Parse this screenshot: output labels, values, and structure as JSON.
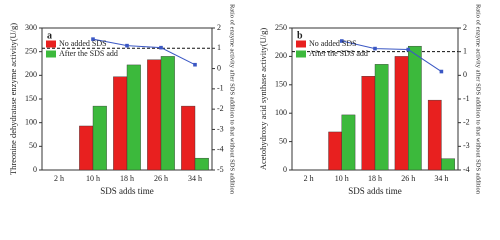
{
  "chart_data": [
    {
      "type": "bar",
      "panel_label": "a",
      "x_label": "SDS adds time",
      "y_label": "Threonine dehydratase enzyme activity(U/g)",
      "y2_label": "Ratio of enzyme activity after SDS addition to that without SDS addition",
      "categories": [
        "2 h",
        "10 h",
        "18 h",
        "26 h",
        "34 h"
      ],
      "series": [
        {
          "name": "No added SDS",
          "color": "#e8201f",
          "values": [
            0,
            93,
            197,
            233,
            135
          ]
        },
        {
          "name": "After the SDS add",
          "color": "#3cb93c",
          "values": [
            0,
            135,
            222,
            240,
            25
          ]
        },
        {
          "type": "line",
          "axis": "y2",
          "color": "#3a57c4",
          "values": [
            null,
            1.45,
            1.13,
            1.03,
            0.19
          ]
        }
      ],
      "ylim": [
        0,
        300
      ],
      "yticks": [
        0,
        50,
        100,
        150,
        200,
        250,
        300
      ],
      "y2lim": [
        -5,
        2
      ],
      "y2ticks": [
        -5,
        -4,
        -3,
        -2,
        -1,
        0,
        1,
        2
      ],
      "reference_line": 1,
      "legend": "upper-left"
    },
    {
      "type": "bar",
      "panel_label": "b",
      "x_label": "SDS adds time",
      "y_label": "Acetohydroxy acid synthase activity(U/g)",
      "y2_label": "Ratio of enzyme activity after SDS addition to that without SDS addition",
      "categories": [
        "2 h",
        "10 h",
        "18 h",
        "26 h",
        "34 h"
      ],
      "series": [
        {
          "name": "No added SDS",
          "color": "#e8201f",
          "values": [
            0,
            67,
            165,
            200,
            123
          ]
        },
        {
          "name": "After the SDS add",
          "color": "#3cb93c",
          "values": [
            0,
            97,
            186,
            218,
            20
          ]
        },
        {
          "type": "line",
          "axis": "y2",
          "color": "#3a57c4",
          "values": [
            null,
            1.45,
            1.13,
            1.09,
            0.16
          ]
        }
      ],
      "ylim": [
        0,
        250
      ],
      "yticks": [
        0,
        50,
        100,
        150,
        200,
        250
      ],
      "y2lim": [
        -4,
        2
      ],
      "y2ticks": [
        -4,
        -3,
        -2,
        -1,
        0,
        1,
        2
      ],
      "reference_line": 1,
      "legend": "upper-left"
    }
  ]
}
